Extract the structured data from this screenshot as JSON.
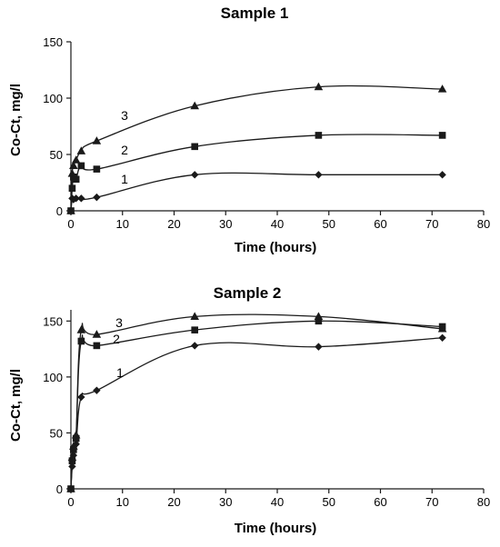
{
  "chart_data": [
    {
      "type": "line",
      "title": "Sample 1",
      "xlabel": "Time (hours)",
      "ylabel": "Co-Ct, mg/l",
      "xlim": [
        0,
        80
      ],
      "ylim": [
        0,
        150
      ],
      "xticks": [
        "0",
        "10",
        "20",
        "30",
        "40",
        "50",
        "60",
        "70",
        "80"
      ],
      "yticks": [
        "0",
        "50",
        "100",
        "150"
      ],
      "grid": false,
      "series": [
        {
          "name": "1",
          "marker": "diamond",
          "x": [
            0,
            0.25,
            0.5,
            1,
            2,
            5,
            24,
            48,
            72
          ],
          "y": [
            0,
            11,
            10,
            11,
            11,
            12,
            32,
            32,
            32
          ]
        },
        {
          "name": "2",
          "marker": "square",
          "x": [
            0,
            0.25,
            0.5,
            1,
            2,
            5,
            24,
            48,
            72
          ],
          "y": [
            0,
            20,
            30,
            28,
            40,
            37,
            57,
            67,
            67
          ]
        },
        {
          "name": "3",
          "marker": "triangle",
          "x": [
            0,
            0.25,
            0.5,
            1,
            2,
            5,
            24,
            48,
            72
          ],
          "y": [
            0,
            33,
            40,
            45,
            53,
            62,
            93,
            110,
            108
          ]
        }
      ]
    },
    {
      "type": "line",
      "title": "Sample 2",
      "xlabel": "Time (hours)",
      "ylabel": "Co-Ct, mg/l",
      "xlim": [
        0,
        80
      ],
      "ylim": [
        0,
        160
      ],
      "xticks": [
        "0",
        "10",
        "20",
        "30",
        "40",
        "50",
        "60",
        "70",
        "80"
      ],
      "yticks": [
        "0",
        "50",
        "100",
        "150"
      ],
      "grid": false,
      "series": [
        {
          "name": "1",
          "marker": "diamond",
          "x": [
            0,
            0.25,
            0.5,
            1,
            2,
            5,
            24,
            48,
            72
          ],
          "y": [
            0,
            20,
            30,
            40,
            82,
            88,
            128,
            127,
            135
          ]
        },
        {
          "name": "2",
          "marker": "square",
          "x": [
            0,
            0.25,
            0.5,
            1,
            2,
            5,
            24,
            48,
            72
          ],
          "y": [
            0,
            25,
            35,
            45,
            132,
            128,
            142,
            150,
            145
          ]
        },
        {
          "name": "3",
          "marker": "triangle",
          "x": [
            0,
            0.25,
            0.5,
            1,
            2,
            5,
            24,
            48,
            72
          ],
          "y": [
            0,
            28,
            38,
            48,
            142,
            138,
            154,
            154,
            143
          ]
        }
      ]
    }
  ]
}
